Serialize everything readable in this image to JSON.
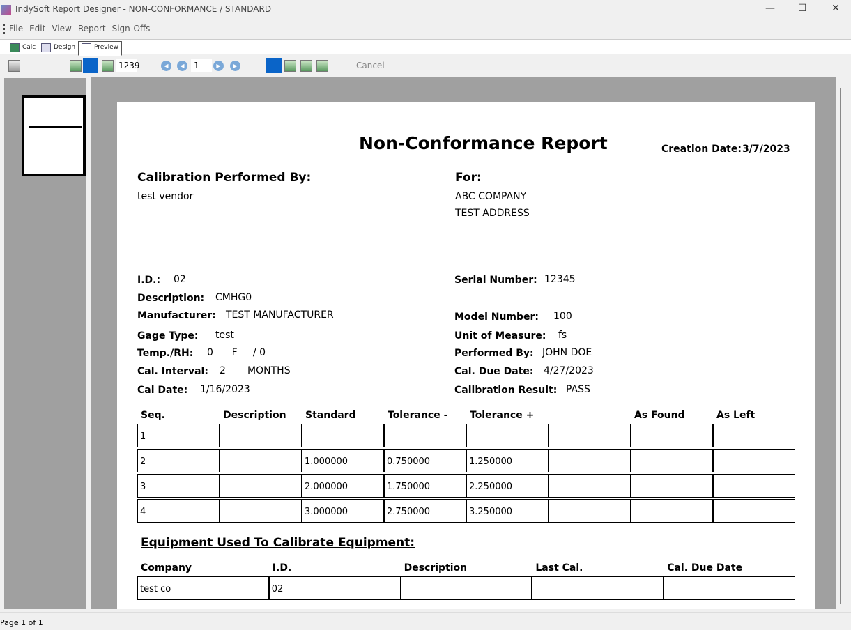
{
  "window": {
    "title": "IndySoft Report Designer  - NON-CONFORMANCE / STANDARD"
  },
  "menu": [
    "File",
    "Edit",
    "View",
    "Report",
    "Sign-Offs"
  ],
  "tabs": [
    {
      "label": "Calc"
    },
    {
      "label": "Design"
    },
    {
      "label": "Preview",
      "active": true
    }
  ],
  "toolbar": {
    "zoom_value": "1239",
    "page_value": "1",
    "cancel_label": "Cancel"
  },
  "report": {
    "title": "Non-Conformance Report",
    "creation_date_label": "Creation Date:",
    "creation_date": "3/7/2023",
    "performed_by_heading": "Calibration Performed By:",
    "vendor": "test vendor",
    "for_heading": "For:",
    "company": "ABC COMPANY",
    "address": "TEST ADDRESS",
    "fields_left": [
      {
        "label": "I.D.:",
        "value": "02"
      },
      {
        "label": "Description:",
        "value": "CMHG0"
      },
      {
        "label": "Manufacturer:",
        "value": "TEST MANUFACTURER"
      },
      {
        "label": "Gage Type:",
        "value": "test"
      },
      {
        "label": "Temp./RH:",
        "value": "0      F     / 0"
      },
      {
        "label": "Cal. Interval:",
        "value": "2       MONTHS"
      },
      {
        "label": "Cal Date:",
        "value": "1/16/2023"
      }
    ],
    "fields_right": [
      {
        "label": "Serial Number:",
        "value": "12345"
      },
      {
        "label": "Model Number:",
        "value": "100"
      },
      {
        "label": "Unit of Measure:",
        "value": "fs"
      },
      {
        "label": "Performed By:",
        "value": "JOHN DOE"
      },
      {
        "label": "Cal. Due Date:",
        "value": "4/27/2023"
      },
      {
        "label": "Calibration Result:",
        "value": "PASS"
      }
    ],
    "readings_headers": [
      "Seq.",
      "Description",
      "Standard",
      "Tolerance -",
      "Tolerance +",
      "",
      "As Found",
      "As Left"
    ],
    "readings_rows": [
      [
        "1",
        "",
        "",
        "",
        "",
        "",
        "",
        ""
      ],
      [
        "2",
        "",
        "1.000000",
        "0.750000",
        "1.250000",
        "",
        "",
        ""
      ],
      [
        "3",
        "",
        "2.000000",
        "1.750000",
        "2.250000",
        "",
        "",
        ""
      ],
      [
        "4",
        "",
        "3.000000",
        "2.750000",
        "3.250000",
        "",
        "",
        ""
      ]
    ],
    "equipment_heading": "Equipment Used To Calibrate Equipment:",
    "equipment_headers": [
      "Company",
      "I.D.",
      "Description",
      "Last Cal.",
      "Cal. Due Date"
    ],
    "equipment_rows": [
      [
        "test co",
        "02",
        "",
        "",
        ""
      ]
    ]
  },
  "status": {
    "page": "Page 1 of 1"
  }
}
